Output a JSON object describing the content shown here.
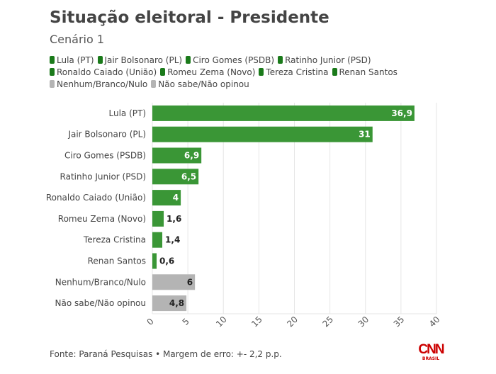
{
  "title": "Situação eleitoral - Presidente",
  "subtitle": "Cenário 1",
  "footer": {
    "source": "Fonte: Paraná Pesquisas • Margem de erro: +- 2,2 p.p.",
    "logo": "CNN BRASIL"
  },
  "colors": {
    "candidate": "#3a9636",
    "other": "#b4b4b4",
    "legend_candidate": "#1a7a1a"
  },
  "chart_data": {
    "type": "bar",
    "orientation": "horizontal",
    "title": "Situação eleitoral - Presidente",
    "subtitle": "Cenário 1",
    "categories": [
      "Lula (PT)",
      "Jair Bolsonaro (PL)",
      "Ciro Gomes (PSDB)",
      "Ratinho Junior (PSD)",
      "Ronaldo Caiado (União)",
      "Romeu Zema (Novo)",
      "Tereza Cristina",
      "Renan Santos",
      "Nenhum/Branco/Nulo",
      "Não sabe/Não opinou"
    ],
    "values": [
      36.9,
      31,
      6.9,
      6.5,
      4,
      1.6,
      1.4,
      0.6,
      6,
      4.8
    ],
    "labels": [
      "36,9",
      "31",
      "6,9",
      "6,5",
      "4",
      "1,6",
      "1,4",
      "0,6",
      "6",
      "4,8"
    ],
    "groups": [
      "candidate",
      "candidate",
      "candidate",
      "candidate",
      "candidate",
      "candidate",
      "candidate",
      "candidate",
      "other",
      "other"
    ],
    "xlim": [
      0,
      40
    ],
    "xticks": [
      "0",
      "5",
      "10",
      "15",
      "20",
      "25",
      "30",
      "35",
      "40"
    ],
    "grid": true,
    "legend": "top"
  }
}
